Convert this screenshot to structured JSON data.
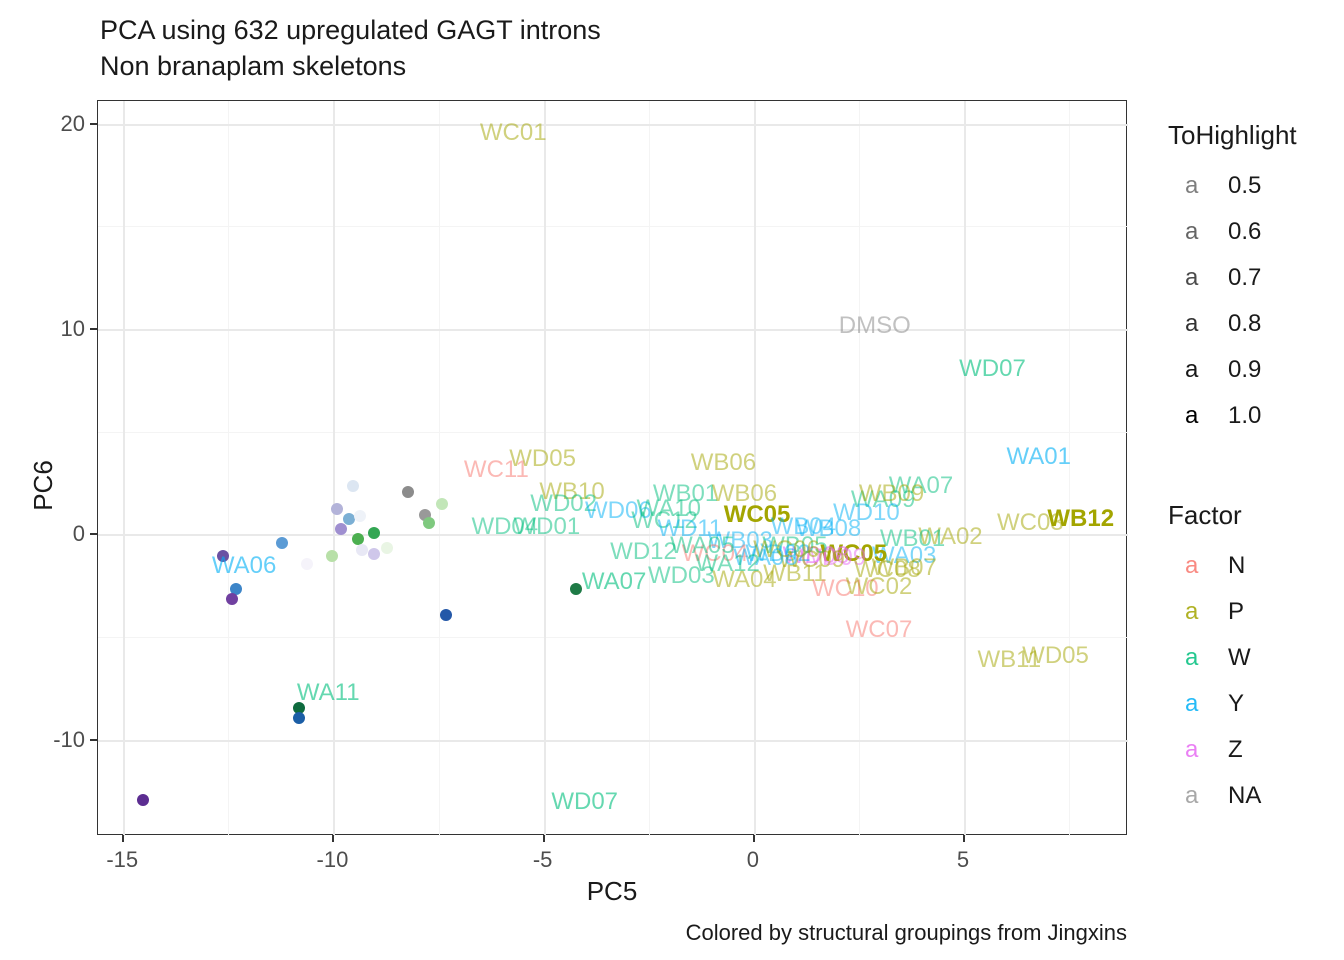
{
  "title": "PCA using 632 upregulated GAGT introns",
  "subtitle": "Non branaplam skeletons",
  "caption": "Colored by structural groupings from Jingxins",
  "legend": {
    "tohighlight": {
      "title": "ToHighlight",
      "glyph": "a",
      "items": [
        {
          "label": "0.5",
          "alpha": 0.5
        },
        {
          "label": "0.6",
          "alpha": 0.6
        },
        {
          "label": "0.7",
          "alpha": 0.7
        },
        {
          "label": "0.8",
          "alpha": 0.8
        },
        {
          "label": "0.9",
          "alpha": 0.9
        },
        {
          "label": "1.0",
          "alpha": 1.0
        }
      ]
    },
    "factor": {
      "title": "Factor",
      "glyph": "a",
      "items": [
        {
          "label": "N",
          "color": "#F8766D"
        },
        {
          "label": "P",
          "color": "#A3A500"
        },
        {
          "label": "W",
          "color": "#00BF7D"
        },
        {
          "label": "Y",
          "color": "#00B0F6"
        },
        {
          "label": "Z",
          "color": "#E76BF3"
        },
        {
          "label": "NA",
          "color": "#999999"
        }
      ]
    }
  },
  "chart_data": {
    "type": "scatter",
    "xlabel": "PC5",
    "ylabel": "PC6",
    "xlim": [
      -15.6,
      8.9
    ],
    "ylim": [
      -14.7,
      21.1
    ],
    "x_major_ticks": [
      -15,
      -10,
      -5,
      0,
      5
    ],
    "x_minor_ticks": [
      -12.5,
      -7.5,
      -2.5,
      2.5,
      7.5
    ],
    "y_major_ticks": [
      -10,
      0,
      10,
      20
    ],
    "y_minor_ticks": [
      -5,
      5,
      15
    ],
    "grid": true,
    "factor_colors": {
      "N": "#F8766D",
      "P": "#A3A500",
      "W": "#00BF7D",
      "Y": "#00B0F6",
      "Z": "#E76BF3",
      "NA": "#999999"
    },
    "labels": [
      {
        "t": "WC01",
        "x": -5.7,
        "y": 19.5,
        "f": "P",
        "a": 0.5,
        "b": false
      },
      {
        "t": "DMSO",
        "x": 2.9,
        "y": 10.1,
        "f": "NA",
        "a": 0.6,
        "b": false
      },
      {
        "t": "WD07",
        "x": 5.7,
        "y": 8.0,
        "f": "W",
        "a": 0.6,
        "b": false
      },
      {
        "t": "WA01",
        "x": 6.8,
        "y": 3.7,
        "f": "Y",
        "a": 0.6,
        "b": false
      },
      {
        "t": "WD05",
        "x": -5.0,
        "y": 3.6,
        "f": "P",
        "a": 0.5,
        "b": false
      },
      {
        "t": "WC11",
        "x": -6.1,
        "y": 3.1,
        "f": "N",
        "a": 0.5,
        "b": false
      },
      {
        "t": "WB06",
        "x": -0.7,
        "y": 3.4,
        "f": "P",
        "a": 0.5,
        "b": false
      },
      {
        "t": "WB10",
        "x": -4.3,
        "y": 2.0,
        "f": "P",
        "a": 0.5,
        "b": false
      },
      {
        "t": "WB01",
        "x": -1.6,
        "y": 1.9,
        "f": "W",
        "a": 0.5,
        "b": false
      },
      {
        "t": "WB06",
        "x": -0.2,
        "y": 1.9,
        "f": "P",
        "a": 0.5,
        "b": false
      },
      {
        "t": "WD02",
        "x": -4.5,
        "y": 1.4,
        "f": "W",
        "a": 0.5,
        "b": false
      },
      {
        "t": "WD06",
        "x": -3.2,
        "y": 1.1,
        "f": "Y",
        "a": 0.5,
        "b": false
      },
      {
        "t": "WA10",
        "x": -2.0,
        "y": 1.2,
        "f": "W",
        "a": 0.5,
        "b": false
      },
      {
        "t": "WD04",
        "x": -5.9,
        "y": 0.3,
        "f": "W",
        "a": 0.5,
        "b": false
      },
      {
        "t": "WD01",
        "x": -4.9,
        "y": 0.3,
        "f": "W",
        "a": 0.5,
        "b": false
      },
      {
        "t": "WC05",
        "x": 0.1,
        "y": 0.9,
        "f": "P",
        "a": 1.0,
        "b": true
      },
      {
        "t": "WC12",
        "x": -2.1,
        "y": 0.6,
        "f": "W",
        "a": 0.5,
        "b": false
      },
      {
        "t": "WA09",
        "x": 3.1,
        "y": 1.6,
        "f": "W",
        "a": 0.5,
        "b": false
      },
      {
        "t": "WA07",
        "x": 4.0,
        "y": 2.3,
        "f": "W",
        "a": 0.5,
        "b": false
      },
      {
        "t": "WB09",
        "x": 3.3,
        "y": 1.9,
        "f": "P",
        "a": 0.5,
        "b": false
      },
      {
        "t": "WB12",
        "x": 7.8,
        "y": 0.7,
        "f": "P",
        "a": 1.0,
        "b": true
      },
      {
        "t": "WC03",
        "x": 6.6,
        "y": 0.5,
        "f": "P",
        "a": 0.5,
        "b": false
      },
      {
        "t": "WA02",
        "x": 4.7,
        "y": -0.2,
        "f": "P",
        "a": 0.5,
        "b": false
      },
      {
        "t": "WB01",
        "x": 3.8,
        "y": -0.3,
        "f": "W",
        "a": 0.5,
        "b": false
      },
      {
        "t": "WA03",
        "x": 3.6,
        "y": -1.1,
        "f": "Y",
        "a": 0.5,
        "b": false
      },
      {
        "t": "WC05",
        "x": 2.4,
        "y": -1.0,
        "f": "P",
        "a": 1.0,
        "b": true
      },
      {
        "t": "WD08",
        "x": 1.5,
        "y": -1.1,
        "f": "Z",
        "a": 0.6,
        "b": false
      },
      {
        "t": "WD09",
        "x": 1.9,
        "y": -1.2,
        "f": "Z",
        "a": 0.5,
        "b": false
      },
      {
        "t": "WB07",
        "x": 3.6,
        "y": -1.7,
        "f": "P",
        "a": 0.5,
        "b": false
      },
      {
        "t": "WC08",
        "x": 3.2,
        "y": -1.8,
        "f": "P",
        "a": 0.5,
        "b": false
      },
      {
        "t": "WB11",
        "x": 1.0,
        "y": -2.0,
        "f": "P",
        "a": 0.5,
        "b": false
      },
      {
        "t": "WC10",
        "x": 2.2,
        "y": -2.7,
        "f": "N",
        "a": 0.5,
        "b": false
      },
      {
        "t": "WC02",
        "x": 3.0,
        "y": -2.6,
        "f": "P",
        "a": 0.5,
        "b": false
      },
      {
        "t": "WC07",
        "x": 3.0,
        "y": -4.7,
        "f": "N",
        "a": 0.5,
        "b": false
      },
      {
        "t": "WB11",
        "x": 6.1,
        "y": -6.2,
        "f": "P",
        "a": 0.5,
        "b": false
      },
      {
        "t": "WD05",
        "x": 7.2,
        "y": -6.0,
        "f": "P",
        "a": 0.5,
        "b": false
      },
      {
        "t": "WA06",
        "x": -12.1,
        "y": -1.6,
        "f": "Y",
        "a": 0.6,
        "b": false
      },
      {
        "t": "WA11",
        "x": -10.1,
        "y": -7.8,
        "f": "W",
        "a": 0.6,
        "b": false
      },
      {
        "t": "WD07",
        "x": -4.0,
        "y": -13.1,
        "f": "W",
        "a": 0.6,
        "b": false
      },
      {
        "t": "WA07",
        "x": -3.3,
        "y": -2.4,
        "f": "W",
        "a": 0.6,
        "b": false
      },
      {
        "t": "WD03",
        "x": -1.7,
        "y": -2.1,
        "f": "W",
        "a": 0.5,
        "b": false
      },
      {
        "t": "WA04",
        "x": -0.2,
        "y": -2.3,
        "f": "P",
        "a": 0.5,
        "b": false
      },
      {
        "t": "WB05",
        "x": 1.0,
        "y": -0.6,
        "f": "W",
        "a": 0.5,
        "b": false
      },
      {
        "t": "WD10",
        "x": 2.7,
        "y": 1.0,
        "f": "Y",
        "a": 0.5,
        "b": false
      },
      {
        "t": "WB02",
        "x": 0.6,
        "y": -1.0,
        "f": "Y",
        "a": 0.5,
        "b": false
      },
      {
        "t": "WB03",
        "x": -0.3,
        "y": -0.4,
        "f": "Y",
        "a": 0.5,
        "b": false
      },
      {
        "t": "WB04",
        "x": 1.2,
        "y": 0.3,
        "f": "Y",
        "a": 0.5,
        "b": false
      },
      {
        "t": "WB08",
        "x": 1.8,
        "y": 0.2,
        "f": "Y",
        "a": 0.5,
        "b": false
      },
      {
        "t": "WC04",
        "x": -0.9,
        "y": -1.0,
        "f": "N",
        "a": 0.5,
        "b": false
      },
      {
        "t": "WC06",
        "x": 0.8,
        "y": -0.8,
        "f": "P",
        "a": 0.5,
        "b": false
      },
      {
        "t": "WC09",
        "x": 1.4,
        "y": -1.3,
        "f": "P",
        "a": 0.5,
        "b": false
      },
      {
        "t": "WD11",
        "x": -1.5,
        "y": 0.2,
        "f": "Y",
        "a": 0.5,
        "b": false
      },
      {
        "t": "WD12",
        "x": -2.6,
        "y": -0.9,
        "f": "W",
        "a": 0.5,
        "b": false
      },
      {
        "t": "WA05",
        "x": -1.2,
        "y": -0.6,
        "f": "W",
        "a": 0.5,
        "b": false
      },
      {
        "t": "WA08",
        "x": 0.3,
        "y": -1.2,
        "f": "Y",
        "a": 0.5,
        "b": false
      },
      {
        "t": "WA12",
        "x": -0.6,
        "y": -1.5,
        "f": "W",
        "a": 0.5,
        "b": false
      }
    ],
    "points": [
      {
        "x": -9.5,
        "y": 2.3,
        "c": "#dce6f2"
      },
      {
        "x": -8.2,
        "y": 2.0,
        "c": "#8c8c8c"
      },
      {
        "x": -9.9,
        "y": 1.2,
        "c": "#b3b3d9"
      },
      {
        "x": -9.6,
        "y": 0.7,
        "c": "#7bafd4"
      },
      {
        "x": -9.35,
        "y": 0.85,
        "c": "#eef2f8"
      },
      {
        "x": -7.8,
        "y": 0.9,
        "c": "#999999"
      },
      {
        "x": -7.4,
        "y": 1.4,
        "c": "#c2e6b8"
      },
      {
        "x": -7.7,
        "y": 0.5,
        "c": "#7fc97f"
      },
      {
        "x": -9.8,
        "y": 0.2,
        "c": "#9f8fd0"
      },
      {
        "x": -9.0,
        "y": 0.0,
        "c": "#33a653"
      },
      {
        "x": -9.4,
        "y": -0.3,
        "c": "#4caf50"
      },
      {
        "x": -11.2,
        "y": -0.5,
        "c": "#5b9bd5"
      },
      {
        "x": -12.6,
        "y": -1.1,
        "c": "#6a51a3"
      },
      {
        "x": -10.0,
        "y": -1.1,
        "c": "#b8e0a8"
      },
      {
        "x": -9.3,
        "y": -0.8,
        "c": "#e8e8f5"
      },
      {
        "x": -9.0,
        "y": -1.0,
        "c": "#cfc7ea"
      },
      {
        "x": -8.7,
        "y": -0.7,
        "c": "#e9f5e4"
      },
      {
        "x": -10.6,
        "y": -1.5,
        "c": "#f5f3fa"
      },
      {
        "x": -12.3,
        "y": -2.7,
        "c": "#3d85c8"
      },
      {
        "x": -12.4,
        "y": -3.2,
        "c": "#7040a0"
      },
      {
        "x": -7.3,
        "y": -4.0,
        "c": "#2458a8"
      },
      {
        "x": -4.2,
        "y": -2.7,
        "c": "#1e7a46"
      },
      {
        "x": -10.8,
        "y": -8.5,
        "c": "#0e6b3e"
      },
      {
        "x": -10.8,
        "y": -9.0,
        "c": "#1b5ea6"
      },
      {
        "x": -14.5,
        "y": -13.0,
        "c": "#5c2d91"
      }
    ]
  }
}
